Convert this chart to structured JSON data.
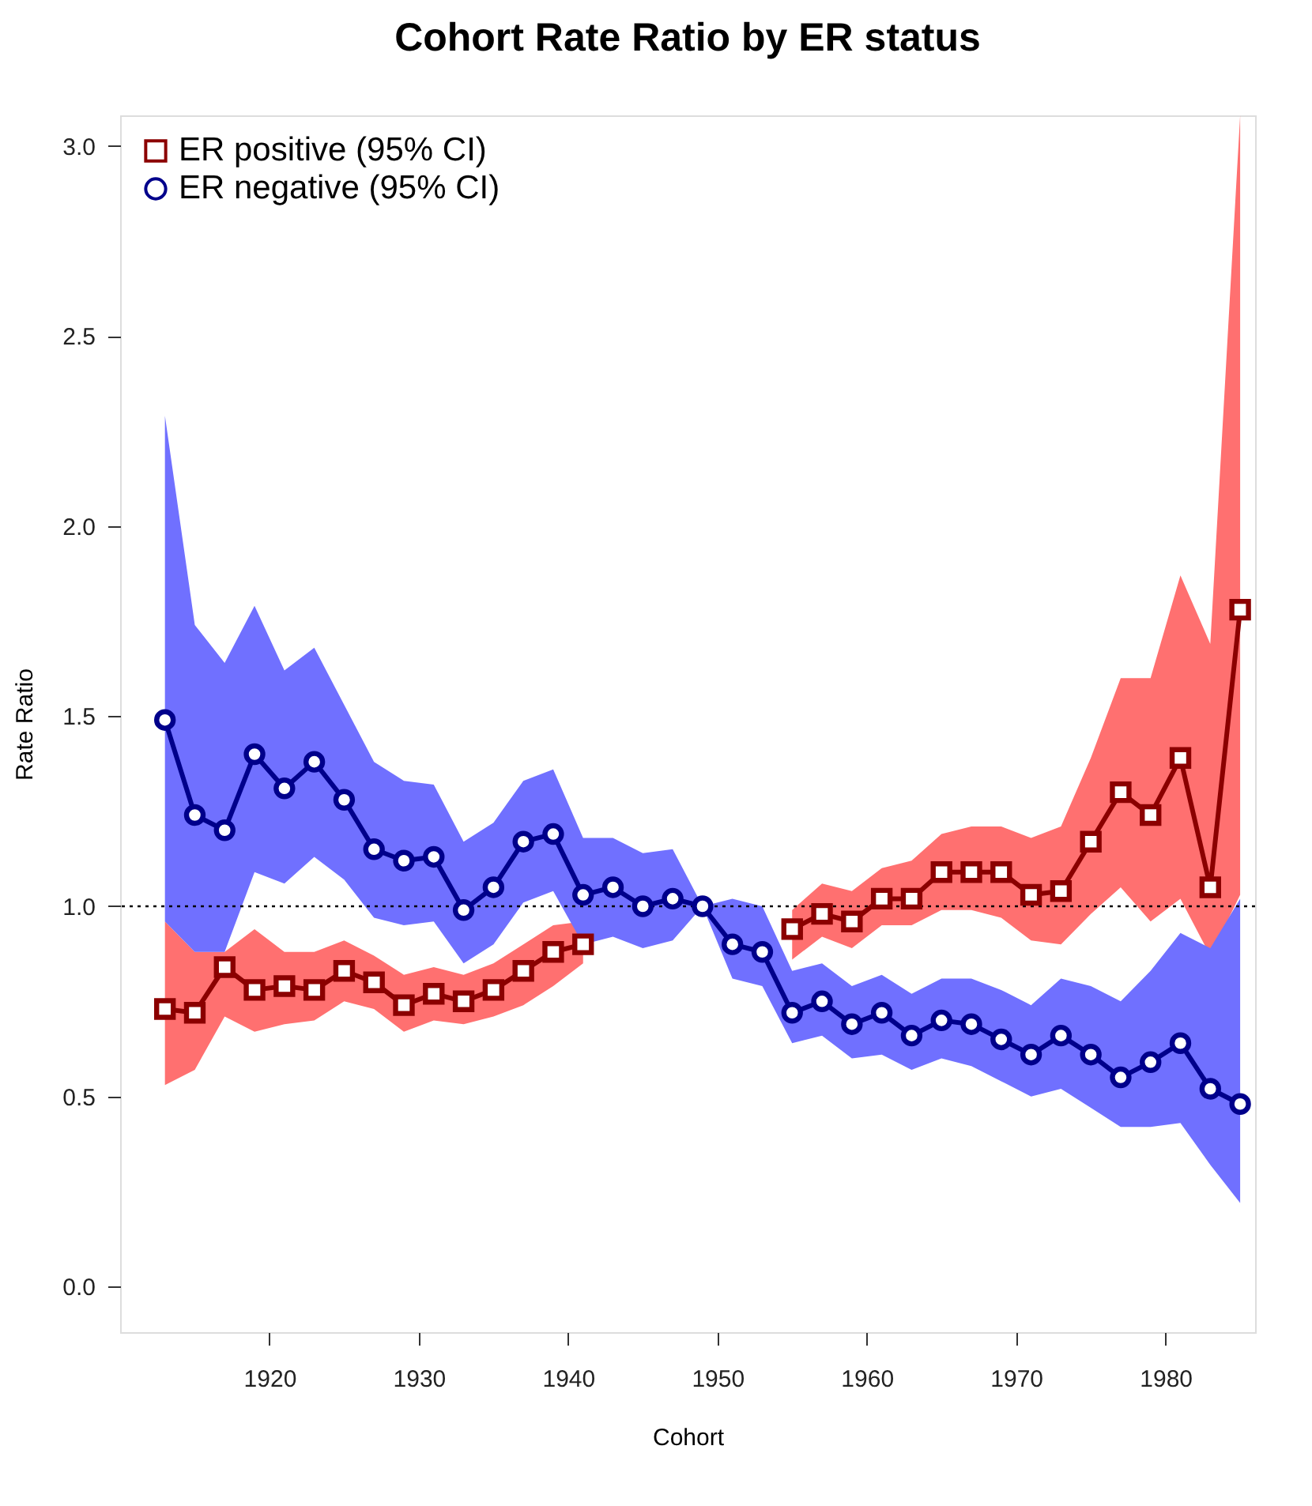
{
  "chart_data": {
    "type": "line",
    "title": "Cohort Rate Ratio by ER status",
    "xlabel": "Cohort",
    "ylabel": "Rate Ratio",
    "x": [
      1913,
      1915,
      1917,
      1919,
      1921,
      1923,
      1925,
      1927,
      1929,
      1931,
      1933,
      1935,
      1937,
      1939,
      1941,
      1943,
      1945,
      1947,
      1949,
      1951,
      1953,
      1955,
      1957,
      1959,
      1961,
      1963,
      1965,
      1967,
      1969,
      1971,
      1973,
      1975,
      1977,
      1979,
      1981,
      1983,
      1985
    ],
    "series": [
      {
        "name": "ER positive (95% CI)",
        "color": "#8b0000",
        "marker": "square",
        "values": [
          0.73,
          0.72,
          0.84,
          0.78,
          0.79,
          0.78,
          0.83,
          0.8,
          0.74,
          0.77,
          0.75,
          0.78,
          0.83,
          0.88,
          0.9,
          null,
          null,
          null,
          null,
          null,
          null,
          0.94,
          0.98,
          0.96,
          1.02,
          1.02,
          1.09,
          1.09,
          1.09,
          1.03,
          1.04,
          1.17,
          1.3,
          1.24,
          1.39,
          1.05,
          1.78
        ],
        "lower": [
          0.53,
          0.57,
          0.71,
          0.67,
          0.69,
          0.7,
          0.75,
          0.73,
          0.67,
          0.7,
          0.69,
          0.71,
          0.74,
          0.79,
          0.85,
          null,
          null,
          null,
          null,
          null,
          null,
          0.86,
          0.92,
          0.89,
          0.95,
          0.95,
          0.99,
          0.99,
          0.97,
          0.91,
          0.9,
          0.98,
          1.05,
          0.96,
          1.02,
          0.87,
          1.03
        ],
        "upper": [
          0.96,
          0.88,
          0.88,
          0.94,
          0.88,
          0.88,
          0.91,
          0.87,
          0.82,
          0.84,
          0.82,
          0.85,
          0.9,
          0.95,
          0.96,
          null,
          null,
          null,
          null,
          null,
          null,
          0.99,
          1.06,
          1.04,
          1.1,
          1.12,
          1.19,
          1.21,
          1.21,
          1.18,
          1.21,
          1.39,
          1.6,
          1.6,
          1.87,
          1.69,
          3.08
        ]
      },
      {
        "name": "ER negative (95% CI)",
        "color": "#00008b",
        "marker": "circle",
        "values": [
          1.49,
          1.24,
          1.2,
          1.4,
          1.31,
          1.38,
          1.28,
          1.15,
          1.12,
          1.13,
          0.99,
          1.05,
          1.17,
          1.19,
          1.03,
          1.05,
          1.0,
          1.02,
          1.0,
          0.9,
          0.88,
          0.72,
          0.75,
          0.69,
          0.72,
          0.66,
          0.7,
          0.69,
          0.65,
          0.61,
          0.66,
          0.61,
          0.55,
          0.59,
          0.64,
          0.52,
          0.48
        ],
        "lower": [
          0.96,
          0.88,
          0.88,
          1.09,
          1.06,
          1.13,
          1.07,
          0.97,
          0.95,
          0.96,
          0.85,
          0.9,
          1.01,
          1.04,
          0.9,
          0.92,
          0.89,
          0.91,
          1.0,
          0.81,
          0.79,
          0.64,
          0.66,
          0.6,
          0.61,
          0.57,
          0.6,
          0.58,
          0.54,
          0.5,
          0.52,
          0.47,
          0.42,
          0.42,
          0.43,
          0.32,
          0.22
        ],
        "upper": [
          2.29,
          1.74,
          1.64,
          1.79,
          1.62,
          1.68,
          1.53,
          1.38,
          1.33,
          1.32,
          1.17,
          1.22,
          1.33,
          1.36,
          1.18,
          1.18,
          1.14,
          1.15,
          1.0,
          1.02,
          1.0,
          0.83,
          0.85,
          0.79,
          0.82,
          0.77,
          0.81,
          0.81,
          0.78,
          0.74,
          0.81,
          0.79,
          0.75,
          0.83,
          0.93,
          0.89,
          1.02
        ]
      }
    ],
    "xlim": [
      1910,
      1986
    ],
    "xticks": [
      1920,
      1930,
      1940,
      1950,
      1960,
      1970,
      1980
    ],
    "ylim": [
      -0.12,
      3.08
    ],
    "yticks": [
      {
        "value": 0,
        "label": "0.0"
      },
      {
        "value": 0.5,
        "label": "0.5"
      },
      {
        "value": 1,
        "label": "1.0"
      },
      {
        "value": 1.5,
        "label": "1.5"
      },
      {
        "value": 2,
        "label": "2.0"
      },
      {
        "value": 2.5,
        "label": "2.5"
      },
      {
        "value": 3,
        "label": "3.0"
      }
    ],
    "ref_lines": [
      {
        "axis": "y",
        "value": 1,
        "color": "#000000",
        "line_style": "dotted"
      }
    ],
    "grid": false,
    "legend": "top left",
    "line_style": "solid"
  }
}
